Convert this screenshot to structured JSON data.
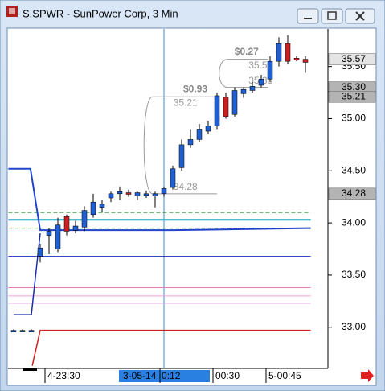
{
  "window": {
    "title": "S.SPWR - SunPower Corp, 3 Min"
  },
  "chart_data": {
    "type": "candlestick",
    "categories": [
      null,
      null,
      null,
      null,
      "4-23:30",
      null,
      null,
      null,
      null,
      null,
      null,
      null,
      null,
      null,
      null,
      null,
      null,
      "3-05-14  0:12",
      null,
      null,
      null,
      null,
      null,
      "00:30",
      null,
      null,
      null,
      null,
      null,
      "5-00:45",
      null,
      null,
      null,
      null
    ],
    "open": [
      32.97,
      32.97,
      32.97,
      33.68,
      33.88,
      33.75,
      34.06,
      33.93,
      33.96,
      34.08,
      34.15,
      34.24,
      34.28,
      34.29,
      34.26,
      34.27,
      34.26,
      34.28,
      34.34,
      34.53,
      34.75,
      34.8,
      34.88,
      34.93,
      35.21,
      35.04,
      35.24,
      35.27,
      35.32,
      35.38,
      35.55,
      35.72,
      35.58,
      35.57
    ],
    "high": [
      32.98,
      32.98,
      32.98,
      33.8,
      33.95,
      34.05,
      34.08,
      34.02,
      34.16,
      34.28,
      34.22,
      34.3,
      34.35,
      34.32,
      34.3,
      34.31,
      34.3,
      34.35,
      34.55,
      34.8,
      34.9,
      34.95,
      34.98,
      35.25,
      35.25,
      35.3,
      35.3,
      35.35,
      35.42,
      35.6,
      35.78,
      35.8,
      35.6,
      35.6
    ],
    "low": [
      32.96,
      32.96,
      32.96,
      33.62,
      33.7,
      33.72,
      33.88,
      33.9,
      33.92,
      34.05,
      34.1,
      34.2,
      34.22,
      34.25,
      34.22,
      34.24,
      34.15,
      34.25,
      34.32,
      34.5,
      34.72,
      34.78,
      34.85,
      34.9,
      35.0,
      35.02,
      35.2,
      35.25,
      35.3,
      35.35,
      35.5,
      35.52,
      35.55,
      35.44
    ],
    "close": [
      32.97,
      32.97,
      32.97,
      33.76,
      33.92,
      33.98,
      33.92,
      33.97,
      34.12,
      34.2,
      34.18,
      34.28,
      34.3,
      34.28,
      34.29,
      34.28,
      34.28,
      34.33,
      34.52,
      34.75,
      34.8,
      34.9,
      34.93,
      35.22,
      35.02,
      35.27,
      35.28,
      35.31,
      35.38,
      35.55,
      35.72,
      35.55,
      35.57,
      35.54
    ],
    "up_color": "#1f5fcf",
    "down_color": "#cc1f1f",
    "ylim": [
      32.62,
      35.86
    ],
    "yticks": [
      {
        "value": 33,
        "label": "33.00"
      },
      {
        "value": 33.5,
        "label": "33.50"
      },
      {
        "value": 34,
        "label": "34.00"
      },
      {
        "value": 34.5,
        "label": "34.50"
      },
      {
        "value": 35,
        "label": "35.00"
      },
      {
        "value": 35.5,
        "label": "35.50"
      }
    ],
    "lines": [
      {
        "color": "#2a8a2a",
        "dash": true,
        "width": 1,
        "x": [
          -0.6,
          33.6
        ],
        "values": [
          34.1,
          34.1
        ]
      },
      {
        "color": "#2a8a2a",
        "dash": true,
        "width": 1,
        "x": [
          -0.6,
          33.6
        ],
        "values": [
          33.95,
          33.95
        ]
      },
      {
        "color": "#18a8b8",
        "dash": false,
        "width": 2,
        "x": [
          -0.6,
          33.6
        ],
        "values": [
          34.03,
          34.03
        ]
      },
      {
        "color": "#1a2fb0",
        "dash": false,
        "width": 1,
        "x": [
          -0.6,
          33.6
        ],
        "values": [
          33.68,
          33.68
        ]
      },
      {
        "color": "#e87ab8",
        "dash": false,
        "width": 1,
        "x": [
          -0.6,
          33.6
        ],
        "values": [
          33.38,
          33.38
        ]
      },
      {
        "color": "#f0a0d8",
        "dash": false,
        "width": 1,
        "x": [
          -0.6,
          33.6
        ],
        "values": [
          33.3,
          33.3
        ]
      },
      {
        "color": "#d890d8",
        "dash": false,
        "width": 1,
        "x": [
          -0.6,
          33.6
        ],
        "values": [
          33.23,
          33.23
        ]
      },
      {
        "color": "#1a2fb0",
        "dash": false,
        "width": 1.5,
        "x": [
          0,
          2,
          3
        ],
        "values": [
          33.12,
          33.12,
          33.9
        ]
      },
      {
        "color": "#cc1f1f",
        "dash": false,
        "width": 1.5,
        "x": [
          2.1,
          3,
          33.6
        ],
        "values": [
          32.63,
          32.97,
          32.97
        ]
      },
      {
        "color": "#2244cc",
        "dash": false,
        "width": 2,
        "x": [
          -0.6,
          1.9,
          3,
          18,
          33.6
        ],
        "values": [
          34.52,
          34.52,
          33.93,
          33.93,
          33.95
        ]
      }
    ],
    "measures": [
      {
        "label": "$0.93",
        "from": 34.28,
        "to": 35.21,
        "from_label": "34.28",
        "to_label": "35.21",
        "start": 15.7,
        "end": 23
      },
      {
        "label": "$0.27",
        "from": 35.3,
        "to": 35.57,
        "from_label": "35.30",
        "to_label": "35.57",
        "start": 24.2,
        "end": 28.8
      }
    ],
    "price_boxes": [
      {
        "value": 35.57,
        "label": "35.57",
        "fill": "#e4e4e4"
      },
      {
        "value": 35.3,
        "label": "35.30",
        "fill": "#b4b4b4"
      },
      {
        "value": 35.21,
        "label": "35.21",
        "fill": "#b4b4b4"
      },
      {
        "value": 34.28,
        "label": "34.28",
        "fill": "#b4b4b4"
      }
    ]
  }
}
